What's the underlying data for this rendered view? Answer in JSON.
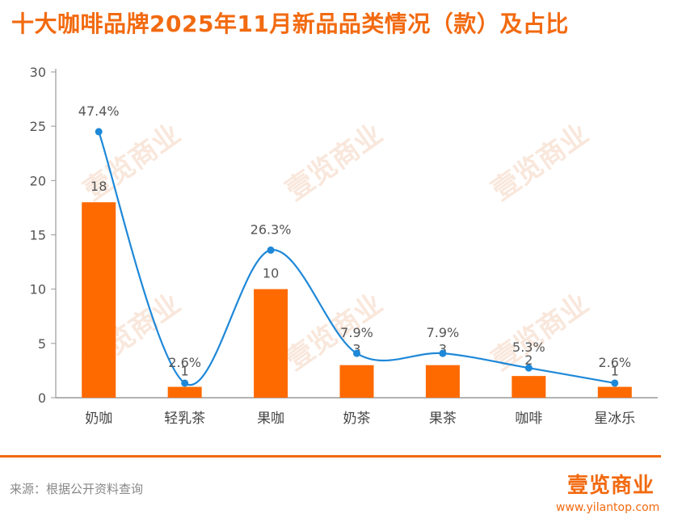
{
  "title": "十大咖啡品牌2025年11月新品品类情况（款）及占比",
  "source": "来源：根据公开资料查询",
  "brand": {
    "name": "壹览商业",
    "url": "www.yilantop.com"
  },
  "watermark": "壹览商业",
  "colors": {
    "bar": "#ff6a00",
    "line": "#1e88d8",
    "title": "#f26a10",
    "axis": "#999999",
    "text": "#555555"
  },
  "chart_data": {
    "type": "bar",
    "categories": [
      "奶咖",
      "轻乳茶",
      "果咖",
      "奶茶",
      "果茶",
      "咖啡",
      "星冰乐"
    ],
    "ylim": [
      0,
      30
    ],
    "yticks": [
      0,
      5,
      10,
      15,
      20,
      25,
      30
    ],
    "series": [
      {
        "type": "bar",
        "values": [
          18,
          1,
          10,
          3,
          3,
          2,
          1
        ]
      },
      {
        "type": "line",
        "values": [
          47.4,
          2.6,
          26.3,
          7.9,
          7.9,
          5.3,
          2.6
        ],
        "labels": [
          "47.4%",
          "2.6%",
          "26.3%",
          "7.9%",
          "7.9%",
          "5.3%",
          "2.6%"
        ]
      }
    ],
    "grid": false,
    "legend": "none"
  }
}
